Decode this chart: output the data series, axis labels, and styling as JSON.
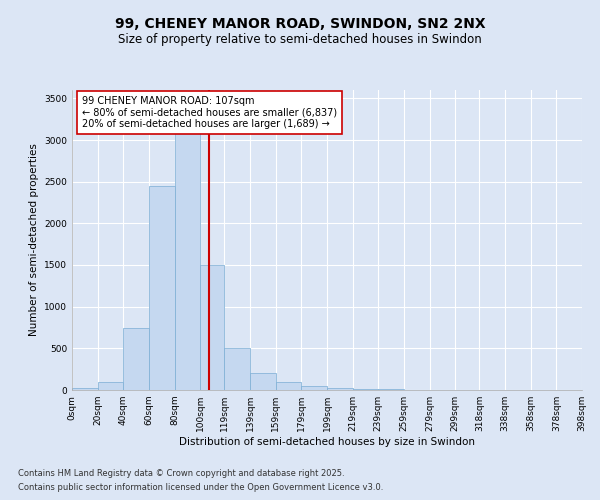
{
  "title1": "99, CHENEY MANOR ROAD, SWINDON, SN2 2NX",
  "title2": "Size of property relative to semi-detached houses in Swindon",
  "xlabel": "Distribution of semi-detached houses by size in Swindon",
  "ylabel": "Number of semi-detached properties",
  "annotation_title": "99 CHENEY MANOR ROAD: 107sqm",
  "annotation_line1": "← 80% of semi-detached houses are smaller (6,837)",
  "annotation_line2": "20% of semi-detached houses are larger (1,689) →",
  "footnote1": "Contains HM Land Registry data © Crown copyright and database right 2025.",
  "footnote2": "Contains public sector information licensed under the Open Government Licence v3.0.",
  "property_size": 107,
  "bar_left_edges": [
    0,
    20,
    40,
    60,
    80,
    100,
    119,
    139,
    159,
    179,
    199,
    219,
    239,
    259,
    279,
    299,
    318,
    338,
    358,
    378
  ],
  "bar_widths": [
    20,
    20,
    20,
    20,
    20,
    19,
    20,
    20,
    20,
    20,
    20,
    20,
    20,
    20,
    20,
    19,
    20,
    20,
    20,
    20
  ],
  "bar_heights": [
    25,
    100,
    750,
    2450,
    3300,
    1500,
    500,
    200,
    100,
    50,
    30,
    15,
    8,
    4,
    2,
    2,
    1,
    0,
    0,
    0
  ],
  "tick_labels": [
    "0sqm",
    "20sqm",
    "40sqm",
    "60sqm",
    "80sqm",
    "100sqm",
    "119sqm",
    "139sqm",
    "159sqm",
    "179sqm",
    "199sqm",
    "219sqm",
    "239sqm",
    "259sqm",
    "279sqm",
    "299sqm",
    "318sqm",
    "338sqm",
    "358sqm",
    "378sqm",
    "398sqm"
  ],
  "tick_positions": [
    0,
    20,
    40,
    60,
    80,
    100,
    119,
    139,
    159,
    179,
    199,
    219,
    239,
    259,
    279,
    299,
    318,
    338,
    358,
    378,
    398
  ],
  "bar_color": "#c5d8f0",
  "bar_edge_color": "#7aadd4",
  "vline_color": "#cc0000",
  "vline_x": 107,
  "ylim": [
    0,
    3600
  ],
  "yticks": [
    0,
    500,
    1000,
    1500,
    2000,
    2500,
    3000,
    3500
  ],
  "bg_color": "#dce6f5",
  "plot_bg_color": "#dce6f5",
  "grid_color": "#ffffff",
  "title_fontsize": 10,
  "subtitle_fontsize": 8.5,
  "axis_label_fontsize": 7.5,
  "tick_fontsize": 6.5,
  "annotation_fontsize": 7,
  "footnote_fontsize": 6
}
